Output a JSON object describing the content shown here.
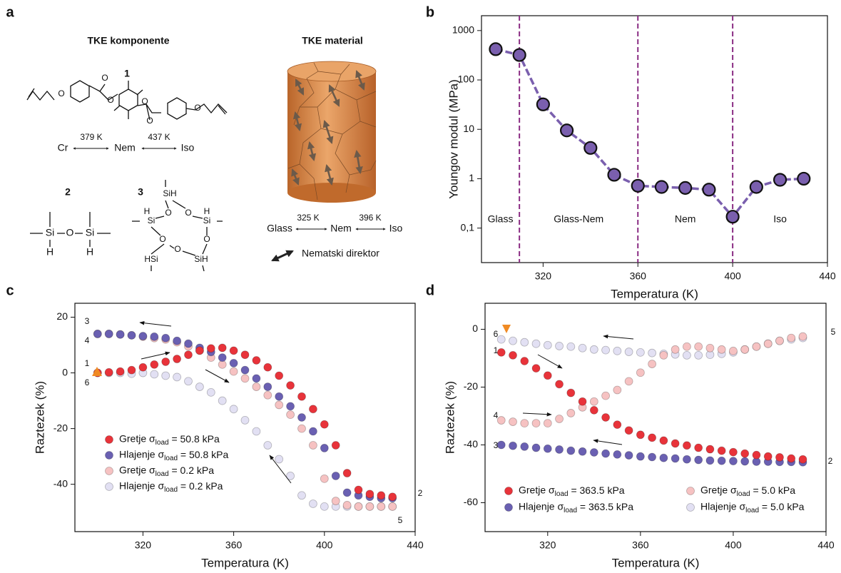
{
  "panel_a": {
    "label": "a",
    "components_title": "TKE komponente",
    "material_title": "TKE material",
    "compound_1": {
      "number": "1",
      "atoms": [
        "O",
        "O",
        "O",
        "O",
        "O",
        "O"
      ],
      "phases": [
        "Cr",
        "Nem",
        "Iso"
      ],
      "transitions": [
        "379 K",
        "437 K"
      ]
    },
    "compound_2": {
      "number": "2",
      "atoms": [
        "Si",
        "O",
        "Si",
        "H",
        "H"
      ]
    },
    "compound_3": {
      "number": "3",
      "atoms": [
        "SiH",
        "O",
        "O",
        "Si",
        "H",
        "Si",
        "H",
        "O",
        "O",
        "HSi",
        "O",
        "SiH"
      ]
    },
    "material": {
      "phases": [
        "Glass",
        "Nem",
        "Iso"
      ],
      "transitions": [
        "325 K",
        "396 K"
      ],
      "director": "Nematski direktor"
    }
  },
  "chart_data": [
    {
      "type": "line",
      "panel_label": "b",
      "ylabel": "Youngov modul (MPa)",
      "xlabel": "Temperatura (K)",
      "x": [
        300,
        310,
        320,
        330,
        340,
        350,
        360,
        370,
        380,
        390,
        400,
        410,
        420,
        430
      ],
      "values": [
        420,
        320,
        32,
        9.5,
        4.2,
        1.2,
        0.72,
        0.68,
        0.65,
        0.6,
        0.17,
        0.68,
        0.95,
        1.0
      ],
      "color": "#7a5fae",
      "log_y": true,
      "xlim": [
        294,
        440
      ],
      "xticks": [
        320,
        360,
        400,
        440
      ],
      "ylim": [
        0.02,
        2000
      ],
      "yticks": [
        {
          "value": 0.1,
          "label": "0,1"
        },
        1,
        10,
        100,
        1000
      ],
      "vlines": [
        310,
        360,
        400
      ],
      "vline_color": "#8a2c83",
      "regions": [
        "Glass",
        "Glass-Nem",
        "Nem",
        "Iso"
      ]
    },
    {
      "type": "scatter",
      "panel_label": "c",
      "ylabel": "Raztezek (%)",
      "xlabel": "Temperatura (K)",
      "x": [
        300,
        305,
        310,
        315,
        320,
        325,
        330,
        335,
        340,
        345,
        350,
        355,
        360,
        365,
        370,
        375,
        380,
        385,
        390,
        395,
        400,
        405,
        410,
        415,
        420,
        425,
        430
      ],
      "series": [
        {
          "name": "Gretje σload = 50.8 kPa",
          "color": "#e8333a",
          "values": [
            0,
            0.2,
            0.5,
            1,
            2,
            3,
            4,
            5,
            6.5,
            8,
            8.8,
            9,
            8,
            6.5,
            4.5,
            2,
            -1,
            -4.5,
            -8.5,
            -13,
            -18.5,
            -26,
            -36,
            -42,
            -43.5,
            -44,
            -44.5
          ]
        },
        {
          "name": "Hlajenje σload = 50.8 kPa",
          "color": "#6a60b2",
          "values": [
            14,
            14,
            13.8,
            13.5,
            13.2,
            13,
            12.5,
            11.5,
            10.5,
            9,
            7.5,
            5.5,
            3.5,
            1,
            -2,
            -5,
            -8.5,
            -12,
            -16,
            -21,
            -27,
            -37,
            -43,
            -44,
            -44.5,
            -45,
            -45
          ]
        },
        {
          "name": "Gretje σload = 0.2 kPa",
          "color": "#f6c2c2",
          "values": [
            14,
            14,
            13.8,
            13.5,
            13,
            12.5,
            12,
            11,
            9.5,
            8,
            5.5,
            3,
            0.5,
            -2,
            -5,
            -8,
            -11.5,
            -15,
            -20,
            -26,
            -38,
            -46,
            -47.5,
            -48,
            -48,
            -48,
            -48
          ]
        },
        {
          "name": "Hlajenje σload = 0.2 kPa",
          "color": "#e2e0f3",
          "values": [
            0,
            0,
            0,
            -0.3,
            0,
            -0.5,
            -1,
            -1.5,
            -3,
            -5,
            -7,
            -10,
            -13,
            -17,
            -21,
            -26,
            -31,
            -37,
            -44,
            -47,
            -48,
            -48,
            -48,
            -48,
            -48,
            -48,
            -48
          ]
        }
      ],
      "xlim": [
        290,
        440
      ],
      "xticks": [
        320,
        360,
        400,
        440
      ],
      "ylim": [
        -57,
        25
      ],
      "yticks": [
        -40,
        -20,
        0,
        20
      ],
      "legend": "lower left",
      "annotations": [
        "3",
        "4",
        "1",
        "6",
        "2",
        "5"
      ]
    },
    {
      "type": "scatter",
      "panel_label": "d",
      "ylabel": "Raztezek (%)",
      "xlabel": "Temperatura (K)",
      "x": [
        300,
        305,
        310,
        315,
        320,
        325,
        330,
        335,
        340,
        345,
        350,
        355,
        360,
        365,
        370,
        375,
        380,
        385,
        390,
        395,
        400,
        405,
        410,
        415,
        420,
        425,
        430
      ],
      "series": [
        {
          "name": "Gretje   σload = 363.5 kPa",
          "color": "#e8333a",
          "values": [
            -8,
            -9,
            -11,
            -13.5,
            -16,
            -19,
            -22,
            -25,
            -28,
            -30.5,
            -33,
            -35,
            -36.5,
            -37.5,
            -38.5,
            -39.5,
            -40.2,
            -41,
            -41.5,
            -42,
            -42.5,
            -43,
            -43.5,
            -44,
            -44.3,
            -44.7,
            -45
          ]
        },
        {
          "name": "Hlajenje σload = 363.5 kPa",
          "color": "#6a60b2",
          "values": [
            -40,
            -40.3,
            -40.6,
            -41,
            -41.3,
            -41.6,
            -42,
            -42.3,
            -42.6,
            -43,
            -43.3,
            -43.6,
            -44,
            -44.2,
            -44.5,
            -44.7,
            -45,
            -45.2,
            -45.4,
            -45.5,
            -45.6,
            -45.7,
            -45.8,
            -45.8,
            -45.9,
            -45.9,
            -46
          ]
        },
        {
          "name": "Gretje   σload = 5.0 kPa",
          "color": "#f6c2c2",
          "values": [
            -31.5,
            -32,
            -32.5,
            -32.5,
            -32.5,
            -31,
            -29,
            -27,
            -25,
            -23,
            -21,
            -18,
            -15,
            -12,
            -9,
            -7,
            -6,
            -6,
            -6.5,
            -7,
            -7.5,
            -7,
            -6,
            -5,
            -4,
            -3,
            -2.5
          ]
        },
        {
          "name": "Hlajenje σload = 5.0 kPa",
          "color": "#e2e0f3",
          "values": [
            -3.5,
            -4,
            -4.5,
            -5,
            -5.5,
            -5.8,
            -6,
            -6.5,
            -7,
            -7.2,
            -7.5,
            -7.8,
            -8,
            -8.2,
            -8.5,
            -8.7,
            -9,
            -9,
            -8.8,
            -8.5,
            -8,
            -7,
            -6,
            -5,
            -4,
            -3.5,
            -3
          ]
        }
      ],
      "xlim": [
        293,
        440
      ],
      "xticks": [
        320,
        360,
        400,
        440
      ],
      "ylim": [
        -70,
        9
      ],
      "yticks": [
        -60,
        -40,
        -20,
        0
      ],
      "legend": "lower center",
      "annotations": [
        "6",
        "1",
        "4",
        "3",
        "5",
        "2"
      ]
    }
  ]
}
